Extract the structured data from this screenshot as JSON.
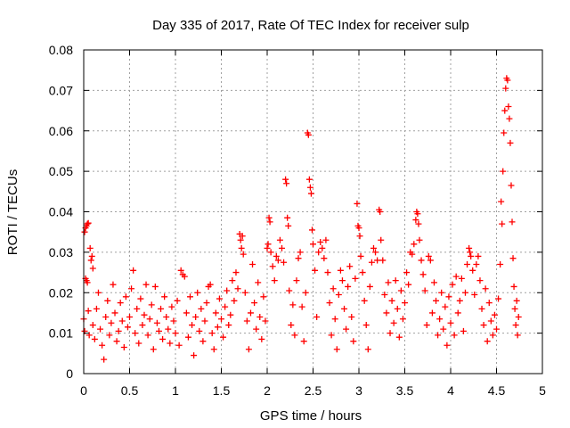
{
  "chart_data": {
    "type": "scatter",
    "title": "Day 335 of 2017, Rate Of TEC Index for receiver sulp",
    "xlabel": "GPS time / hours",
    "ylabel": "ROTI / TECUs",
    "xlim": [
      0,
      5
    ],
    "ylim": [
      0,
      0.08
    ],
    "grid": true,
    "marker": "+",
    "color": "#ff0000",
    "x_ticks": [
      0,
      0.5,
      1,
      1.5,
      2,
      2.5,
      3,
      3.5,
      4,
      4.5,
      5
    ],
    "x_tick_labels": [
      "0",
      "0.5",
      "1",
      "1.5",
      "2",
      "2.5",
      "3",
      "3.5",
      "4",
      "4.5",
      "5"
    ],
    "y_ticks": [
      0,
      0.01,
      0.02,
      0.03,
      0.04,
      0.05,
      0.06,
      0.07,
      0.08
    ],
    "y_tick_labels": [
      "0",
      "0.01",
      "0.02",
      "0.03",
      "0.04",
      "0.05",
      "0.06",
      "0.07",
      "0.08"
    ],
    "series": [
      {
        "name": "ROTI",
        "points": [
          [
            0.0,
            0.0135
          ],
          [
            0.01,
            0.0105
          ],
          [
            0.01,
            0.035
          ],
          [
            0.02,
            0.036
          ],
          [
            0.03,
            0.0365
          ],
          [
            0.04,
            0.037
          ],
          [
            0.05,
            0.0372
          ],
          [
            0.02,
            0.0235
          ],
          [
            0.03,
            0.023
          ],
          [
            0.04,
            0.0225
          ],
          [
            0.05,
            0.0155
          ],
          [
            0.06,
            0.0095
          ],
          [
            0.07,
            0.031
          ],
          [
            0.08,
            0.028
          ],
          [
            0.09,
            0.029
          ],
          [
            0.1,
            0.026
          ],
          [
            0.1,
            0.012
          ],
          [
            0.12,
            0.0085
          ],
          [
            0.14,
            0.016
          ],
          [
            0.16,
            0.02
          ],
          [
            0.18,
            0.011
          ],
          [
            0.2,
            0.007
          ],
          [
            0.22,
            0.0035
          ],
          [
            0.24,
            0.014
          ],
          [
            0.26,
            0.018
          ],
          [
            0.28,
            0.0095
          ],
          [
            0.3,
            0.0125
          ],
          [
            0.32,
            0.022
          ],
          [
            0.34,
            0.015
          ],
          [
            0.36,
            0.008
          ],
          [
            0.38,
            0.0105
          ],
          [
            0.4,
            0.0175
          ],
          [
            0.42,
            0.013
          ],
          [
            0.44,
            0.0065
          ],
          [
            0.46,
            0.019
          ],
          [
            0.48,
            0.0115
          ],
          [
            0.5,
            0.014
          ],
          [
            0.52,
            0.021
          ],
          [
            0.54,
            0.0255
          ],
          [
            0.56,
            0.01
          ],
          [
            0.58,
            0.016
          ],
          [
            0.6,
            0.0075
          ],
          [
            0.62,
            0.0185
          ],
          [
            0.64,
            0.012
          ],
          [
            0.66,
            0.0145
          ],
          [
            0.68,
            0.022
          ],
          [
            0.7,
            0.0095
          ],
          [
            0.72,
            0.0135
          ],
          [
            0.74,
            0.017
          ],
          [
            0.76,
            0.006
          ],
          [
            0.78,
            0.0215
          ],
          [
            0.8,
            0.0125
          ],
          [
            0.82,
            0.0105
          ],
          [
            0.84,
            0.016
          ],
          [
            0.86,
            0.0085
          ],
          [
            0.88,
            0.019
          ],
          [
            0.9,
            0.014
          ],
          [
            0.92,
            0.011
          ],
          [
            0.94,
            0.0075
          ],
          [
            0.96,
            0.0165
          ],
          [
            0.98,
            0.013
          ],
          [
            1.0,
            0.01
          ],
          [
            1.02,
            0.018
          ],
          [
            1.04,
            0.007
          ],
          [
            1.06,
            0.0255
          ],
          [
            1.08,
            0.0245
          ],
          [
            1.1,
            0.024
          ],
          [
            1.12,
            0.015
          ],
          [
            1.14,
            0.009
          ],
          [
            1.16,
            0.019
          ],
          [
            1.18,
            0.012
          ],
          [
            1.2,
            0.0045
          ],
          [
            1.22,
            0.014
          ],
          [
            1.24,
            0.02
          ],
          [
            1.26,
            0.0105
          ],
          [
            1.28,
            0.016
          ],
          [
            1.3,
            0.008
          ],
          [
            1.32,
            0.013
          ],
          [
            1.34,
            0.0175
          ],
          [
            1.36,
            0.0215
          ],
          [
            1.38,
            0.022
          ],
          [
            1.4,
            0.01
          ],
          [
            1.42,
            0.006
          ],
          [
            1.44,
            0.015
          ],
          [
            1.46,
            0.0115
          ],
          [
            1.48,
            0.0185
          ],
          [
            1.5,
            0.0135
          ],
          [
            1.52,
            0.009
          ],
          [
            1.54,
            0.0165
          ],
          [
            1.56,
            0.0205
          ],
          [
            1.58,
            0.012
          ],
          [
            1.6,
            0.0145
          ],
          [
            1.62,
            0.023
          ],
          [
            1.64,
            0.018
          ],
          [
            1.66,
            0.025
          ],
          [
            1.68,
            0.021
          ],
          [
            1.7,
            0.0345
          ],
          [
            1.71,
            0.033
          ],
          [
            1.72,
            0.031
          ],
          [
            1.73,
            0.034
          ],
          [
            1.74,
            0.0295
          ],
          [
            1.76,
            0.02
          ],
          [
            1.78,
            0.013
          ],
          [
            1.8,
            0.006
          ],
          [
            1.82,
            0.015
          ],
          [
            1.84,
            0.027
          ],
          [
            1.86,
            0.0175
          ],
          [
            1.88,
            0.011
          ],
          [
            1.9,
            0.0225
          ],
          [
            1.92,
            0.014
          ],
          [
            1.94,
            0.0085
          ],
          [
            1.96,
            0.019
          ],
          [
            1.98,
            0.013
          ],
          [
            2.0,
            0.031
          ],
          [
            2.01,
            0.032
          ],
          [
            2.02,
            0.0385
          ],
          [
            2.03,
            0.0375
          ],
          [
            2.04,
            0.03
          ],
          [
            2.06,
            0.0265
          ],
          [
            2.08,
            0.023
          ],
          [
            2.1,
            0.029
          ],
          [
            2.12,
            0.028
          ],
          [
            2.14,
            0.033
          ],
          [
            2.16,
            0.031
          ],
          [
            2.18,
            0.0275
          ],
          [
            2.2,
            0.048
          ],
          [
            2.21,
            0.047
          ],
          [
            2.22,
            0.0385
          ],
          [
            2.23,
            0.0365
          ],
          [
            2.24,
            0.0205
          ],
          [
            2.26,
            0.012
          ],
          [
            2.28,
            0.017
          ],
          [
            2.3,
            0.0095
          ],
          [
            2.32,
            0.023
          ],
          [
            2.34,
            0.0285
          ],
          [
            2.36,
            0.03
          ],
          [
            2.38,
            0.0165
          ],
          [
            2.4,
            0.008
          ],
          [
            2.42,
            0.02
          ],
          [
            2.44,
            0.0595
          ],
          [
            2.45,
            0.059
          ],
          [
            2.46,
            0.048
          ],
          [
            2.47,
            0.046
          ],
          [
            2.48,
            0.0445
          ],
          [
            2.49,
            0.0355
          ],
          [
            2.5,
            0.032
          ],
          [
            2.52,
            0.0255
          ],
          [
            2.54,
            0.014
          ],
          [
            2.56,
            0.03
          ],
          [
            2.58,
            0.0325
          ],
          [
            2.6,
            0.031
          ],
          [
            2.62,
            0.0285
          ],
          [
            2.64,
            0.033
          ],
          [
            2.66,
            0.025
          ],
          [
            2.68,
            0.0175
          ],
          [
            2.7,
            0.0095
          ],
          [
            2.72,
            0.021
          ],
          [
            2.74,
            0.0135
          ],
          [
            2.76,
            0.006
          ],
          [
            2.78,
            0.0195
          ],
          [
            2.8,
            0.0255
          ],
          [
            2.82,
            0.023
          ],
          [
            2.84,
            0.016
          ],
          [
            2.86,
            0.011
          ],
          [
            2.88,
            0.0215
          ],
          [
            2.9,
            0.0265
          ],
          [
            2.92,
            0.014
          ],
          [
            2.94,
            0.008
          ],
          [
            2.96,
            0.0235
          ],
          [
            2.98,
            0.042
          ],
          [
            2.99,
            0.0365
          ],
          [
            3.0,
            0.036
          ],
          [
            3.01,
            0.034
          ],
          [
            3.02,
            0.029
          ],
          [
            3.04,
            0.025
          ],
          [
            3.06,
            0.018
          ],
          [
            3.08,
            0.012
          ],
          [
            3.1,
            0.006
          ],
          [
            3.12,
            0.0215
          ],
          [
            3.14,
            0.0275
          ],
          [
            3.16,
            0.031
          ],
          [
            3.18,
            0.03
          ],
          [
            3.2,
            0.028
          ],
          [
            3.22,
            0.0405
          ],
          [
            3.23,
            0.04
          ],
          [
            3.24,
            0.033
          ],
          [
            3.26,
            0.028
          ],
          [
            3.28,
            0.0195
          ],
          [
            3.3,
            0.015
          ],
          [
            3.32,
            0.0225
          ],
          [
            3.34,
            0.01
          ],
          [
            3.36,
            0.018
          ],
          [
            3.38,
            0.0125
          ],
          [
            3.4,
            0.023
          ],
          [
            3.42,
            0.016
          ],
          [
            3.44,
            0.009
          ],
          [
            3.46,
            0.0205
          ],
          [
            3.48,
            0.0135
          ],
          [
            3.5,
            0.0175
          ],
          [
            3.52,
            0.025
          ],
          [
            3.54,
            0.022
          ],
          [
            3.56,
            0.03
          ],
          [
            3.58,
            0.0295
          ],
          [
            3.6,
            0.032
          ],
          [
            3.62,
            0.038
          ],
          [
            3.63,
            0.04
          ],
          [
            3.64,
            0.0395
          ],
          [
            3.65,
            0.037
          ],
          [
            3.66,
            0.033
          ],
          [
            3.68,
            0.028
          ],
          [
            3.7,
            0.0245
          ],
          [
            3.72,
            0.0205
          ],
          [
            3.74,
            0.012
          ],
          [
            3.76,
            0.029
          ],
          [
            3.78,
            0.028
          ],
          [
            3.8,
            0.015
          ],
          [
            3.82,
            0.0225
          ],
          [
            3.84,
            0.018
          ],
          [
            3.86,
            0.0095
          ],
          [
            3.88,
            0.0135
          ],
          [
            3.9,
            0.02
          ],
          [
            3.92,
            0.011
          ],
          [
            3.94,
            0.0165
          ],
          [
            3.96,
            0.007
          ],
          [
            3.98,
            0.019
          ],
          [
            4.0,
            0.0125
          ],
          [
            4.02,
            0.022
          ],
          [
            4.04,
            0.0095
          ],
          [
            4.06,
            0.024
          ],
          [
            4.08,
            0.015
          ],
          [
            4.1,
            0.018
          ],
          [
            4.12,
            0.0235
          ],
          [
            4.14,
            0.0105
          ],
          [
            4.16,
            0.02
          ],
          [
            4.18,
            0.027
          ],
          [
            4.2,
            0.031
          ],
          [
            4.21,
            0.03
          ],
          [
            4.22,
            0.029
          ],
          [
            4.24,
            0.0255
          ],
          [
            4.26,
            0.0195
          ],
          [
            4.28,
            0.027
          ],
          [
            4.3,
            0.029
          ],
          [
            4.32,
            0.023
          ],
          [
            4.34,
            0.016
          ],
          [
            4.36,
            0.012
          ],
          [
            4.38,
            0.021
          ],
          [
            4.4,
            0.008
          ],
          [
            4.42,
            0.0175
          ],
          [
            4.44,
            0.013
          ],
          [
            4.46,
            0.0095
          ],
          [
            4.48,
            0.0145
          ],
          [
            4.5,
            0.011
          ],
          [
            4.52,
            0.0185
          ],
          [
            4.54,
            0.027
          ],
          [
            4.55,
            0.0425
          ],
          [
            4.56,
            0.037
          ],
          [
            4.57,
            0.05
          ],
          [
            4.58,
            0.0595
          ],
          [
            4.59,
            0.065
          ],
          [
            4.6,
            0.0705
          ],
          [
            4.61,
            0.073
          ],
          [
            4.62,
            0.0725
          ],
          [
            4.63,
            0.066
          ],
          [
            4.64,
            0.063
          ],
          [
            4.65,
            0.057
          ],
          [
            4.66,
            0.0465
          ],
          [
            4.67,
            0.0375
          ],
          [
            4.68,
            0.0285
          ],
          [
            4.69,
            0.0215
          ],
          [
            4.7,
            0.016
          ],
          [
            4.71,
            0.012
          ],
          [
            4.72,
            0.018
          ],
          [
            4.73,
            0.0095
          ],
          [
            4.74,
            0.014
          ]
        ]
      }
    ]
  }
}
